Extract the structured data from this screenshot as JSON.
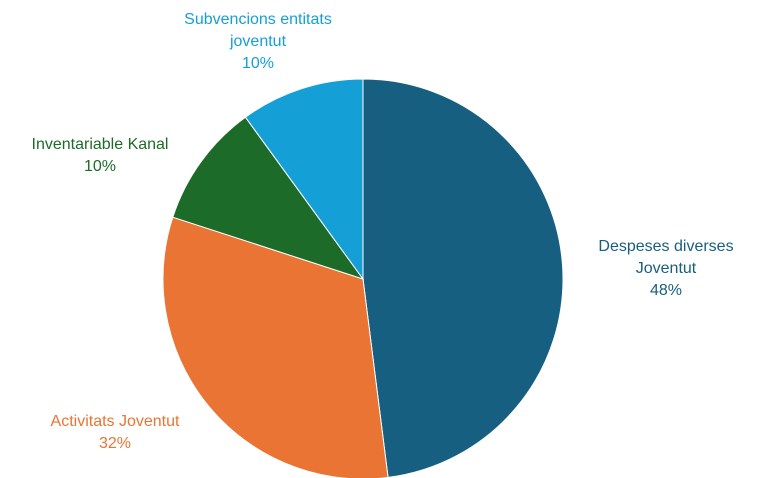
{
  "chart_data": {
    "type": "pie",
    "categories": [
      "Despeses diverses Joventut",
      "Activitats Joventut",
      "Inventariable Kanal",
      "Subvencions entitats joventut"
    ],
    "values": [
      48,
      32,
      10,
      10
    ],
    "value_labels": [
      "48%",
      "32%",
      "10%",
      "10%"
    ],
    "colors": [
      "#175f80",
      "#e97433",
      "#1d6b28",
      "#14a0d7"
    ]
  }
}
